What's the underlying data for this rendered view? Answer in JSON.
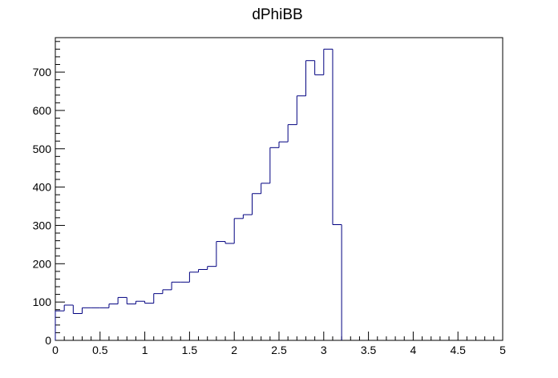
{
  "chart_data": {
    "type": "histogram",
    "title": "dPhiBB",
    "xlabel": "",
    "ylabel": "",
    "xlim": [
      0,
      5
    ],
    "ylim": [
      0,
      790
    ],
    "bin_width": 0.1,
    "x_ticks": [
      "0",
      "0.5",
      "1",
      "1.5",
      "2",
      "2.5",
      "3",
      "3.5",
      "4",
      "4.5",
      "5"
    ],
    "y_ticks": [
      "0",
      "100",
      "200",
      "300",
      "400",
      "500",
      "600",
      "700"
    ],
    "grid": false,
    "line_color": "#000080",
    "bin_edges": [
      0.0,
      0.1,
      0.2,
      0.3,
      0.4,
      0.5,
      0.6,
      0.7,
      0.8,
      0.9,
      1.0,
      1.1,
      1.2,
      1.3,
      1.4,
      1.5,
      1.6,
      1.7,
      1.8,
      1.9,
      2.0,
      2.1,
      2.2,
      2.3,
      2.4,
      2.5,
      2.6,
      2.7,
      2.8,
      2.9,
      3.0,
      3.1,
      3.2,
      3.3,
      3.4,
      3.5,
      3.6,
      3.7,
      3.8,
      3.9,
      4.0,
      4.1,
      4.2,
      4.3,
      4.4,
      4.5,
      4.6,
      4.7,
      4.8,
      4.9,
      5.0
    ],
    "values": [
      77,
      92,
      70,
      85,
      85,
      85,
      95,
      112,
      95,
      102,
      97,
      122,
      132,
      152,
      152,
      178,
      185,
      193,
      258,
      253,
      318,
      328,
      383,
      410,
      503,
      518,
      563,
      638,
      730,
      693,
      760,
      302,
      0,
      0,
      0,
      0,
      0,
      0,
      0,
      0,
      0,
      0,
      0,
      0,
      0,
      0,
      0,
      0,
      0,
      0
    ]
  }
}
